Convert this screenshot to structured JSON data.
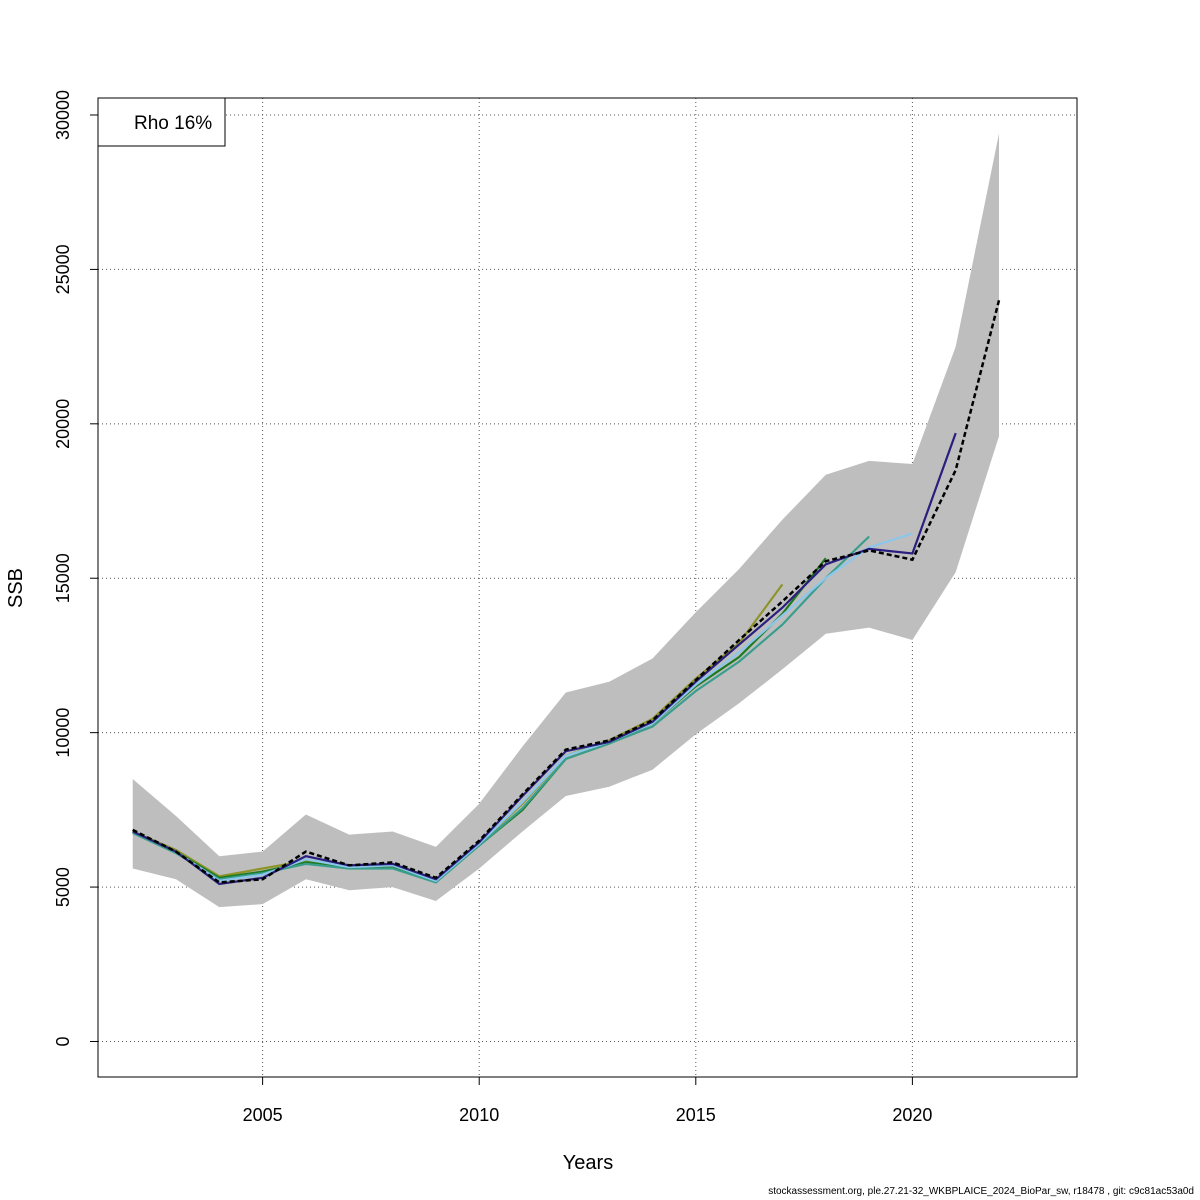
{
  "chart_data": {
    "type": "line",
    "xlabel": "Years",
    "ylabel": "SSB",
    "xlim": [
      2001.2,
      2023.8
    ],
    "ylim": [
      -1150,
      30550
    ],
    "x_ticks": [
      2005,
      2010,
      2015,
      2020
    ],
    "x_tick_labels": [
      "2005",
      "2010",
      "2015",
      "2020"
    ],
    "y_ticks": [
      0,
      5000,
      10000,
      15000,
      20000,
      25000,
      30000
    ],
    "y_tick_labels": [
      "0",
      "5000",
      "10000",
      "15000",
      "20000",
      "25000",
      "30000"
    ],
    "grid": true,
    "legend": {
      "position": "top-left",
      "text": "Rho 16%"
    },
    "confidence_band": {
      "x": [
        2002,
        2003,
        2004,
        2005,
        2006,
        2007,
        2008,
        2009,
        2010,
        2011,
        2012,
        2013,
        2014,
        2015,
        2016,
        2017,
        2018,
        2019,
        2020,
        2021,
        2022
      ],
      "upper": [
        8500,
        7300,
        6000,
        6150,
        7350,
        6700,
        6800,
        6300,
        7700,
        9550,
        11300,
        11650,
        12400,
        13900,
        15300,
        16900,
        18350,
        18800,
        18700,
        22500,
        29400
      ],
      "lower": [
        5600,
        5250,
        4350,
        4450,
        5250,
        4900,
        5000,
        4550,
        5600,
        6800,
        7950,
        8250,
        8800,
        9950,
        10950,
        12050,
        13200,
        13400,
        13000,
        15200,
        19600
      ]
    },
    "series": [
      {
        "color": "#000000",
        "dashed": true,
        "x": [
          2002,
          2003,
          2004,
          2005,
          2006,
          2007,
          2008,
          2009,
          2010,
          2011,
          2012,
          2013,
          2014,
          2015,
          2016,
          2017,
          2018,
          2019,
          2020,
          2021,
          2022
        ],
        "values": [
          6850,
          6150,
          5150,
          5250,
          6150,
          5700,
          5800,
          5300,
          6500,
          8000,
          9450,
          9750,
          10400,
          11700,
          13000,
          14250,
          15550,
          15900,
          15600,
          18500,
          24000
        ]
      },
      {
        "color": "#2a1f7e",
        "dashed": false,
        "x": [
          2002,
          2003,
          2004,
          2005,
          2006,
          2007,
          2008,
          2009,
          2010,
          2011,
          2012,
          2013,
          2014,
          2015,
          2016,
          2017,
          2018,
          2019,
          2020,
          2021
        ],
        "values": [
          6800,
          6150,
          5100,
          5300,
          6000,
          5700,
          5750,
          5250,
          6450,
          7950,
          9400,
          9700,
          10350,
          11650,
          12850,
          14050,
          15450,
          15950,
          15800,
          19700
        ]
      },
      {
        "color": "#8bc7ec",
        "dashed": false,
        "x": [
          2002,
          2003,
          2004,
          2005,
          2006,
          2007,
          2008,
          2009,
          2010,
          2011,
          2012,
          2013,
          2014,
          2015,
          2016,
          2017,
          2018,
          2019,
          2020
        ],
        "values": [
          6800,
          6150,
          5200,
          5400,
          5900,
          5650,
          5700,
          5200,
          6400,
          7750,
          9250,
          9700,
          10300,
          11550,
          12600,
          13800,
          15000,
          16000,
          16450
        ]
      },
      {
        "color": "#3a9e8c",
        "dashed": false,
        "x": [
          2002,
          2003,
          2004,
          2005,
          2006,
          2007,
          2008,
          2009,
          2010,
          2011,
          2012,
          2013,
          2014,
          2015,
          2016,
          2017,
          2018,
          2019
        ],
        "values": [
          6750,
          6100,
          5250,
          5450,
          5750,
          5600,
          5600,
          5150,
          6350,
          7550,
          9150,
          9650,
          10200,
          11350,
          12300,
          13500,
          15000,
          16350
        ]
      },
      {
        "color": "#1f7a1f",
        "dashed": false,
        "x": [
          2002,
          2003,
          2004,
          2005,
          2006,
          2007,
          2008,
          2009,
          2010,
          2011,
          2012,
          2013,
          2014,
          2015,
          2016,
          2017,
          2018
        ],
        "values": [
          6800,
          6150,
          5300,
          5500,
          5800,
          5650,
          5650,
          5200,
          6350,
          7500,
          9150,
          9650,
          10300,
          11500,
          12450,
          13850,
          15650
        ]
      },
      {
        "color": "#8e9428",
        "dashed": false,
        "x": [
          2002,
          2003,
          2004,
          2005,
          2006,
          2007,
          2008,
          2009,
          2010,
          2011,
          2012,
          2013,
          2014,
          2015,
          2016,
          2017
        ],
        "values": [
          6800,
          6200,
          5350,
          5600,
          5850,
          5700,
          5700,
          5250,
          6400,
          7700,
          9250,
          9750,
          10450,
          11750,
          12900,
          14800
        ]
      }
    ]
  },
  "footer": "stockassessment.org, ple.27.21-32_WKBPLAICE_2024_BioPar_sw, r18478 , git: c9c81ac53a0d"
}
